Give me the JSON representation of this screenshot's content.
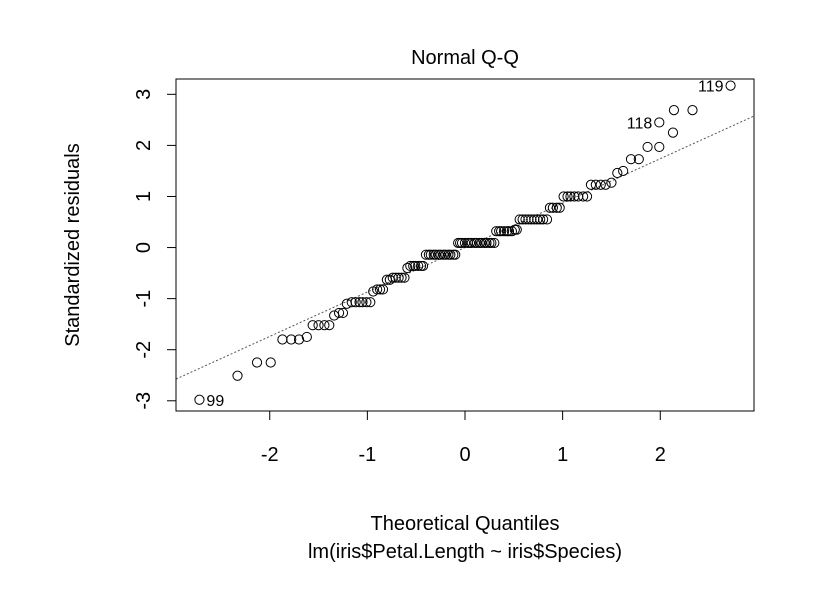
{
  "chart_data": {
    "type": "scatter",
    "title": "Normal Q-Q",
    "xlabel": "Theoretical Quantiles",
    "subtitle": "lm(iris$Petal.Length ~ iris$Species)",
    "ylabel": "Standardized residuals",
    "xlim": [
      -2.96,
      2.96
    ],
    "ylim": [
      -3.2,
      3.3
    ],
    "xticks": [
      -2,
      -1,
      0,
      1,
      2
    ],
    "yticks": [
      -3,
      -2,
      -1,
      0,
      1,
      2,
      3
    ],
    "reference_line": {
      "style": "dotted",
      "intercept": 0.0,
      "slope": 0.87
    },
    "labeled_points": [
      {
        "label": "119",
        "x": 2.72,
        "y": 3.17
      },
      {
        "label": "118",
        "x": 1.99,
        "y": 2.45
      },
      {
        "label": "99",
        "x": -2.72,
        "y": -2.98
      }
    ],
    "points": [
      [
        -2.72,
        -2.98
      ],
      [
        -2.33,
        -2.51
      ],
      [
        -2.13,
        -2.25
      ],
      [
        -1.99,
        -2.25
      ],
      [
        -1.87,
        -1.8
      ],
      [
        -1.78,
        -1.8
      ],
      [
        -1.7,
        -1.8
      ],
      [
        -1.62,
        -1.75
      ],
      [
        -1.56,
        -1.52
      ],
      [
        -1.5,
        -1.52
      ],
      [
        -1.44,
        -1.52
      ],
      [
        -1.39,
        -1.52
      ],
      [
        -1.34,
        -1.33
      ],
      [
        -1.29,
        -1.28
      ],
      [
        -1.25,
        -1.28
      ],
      [
        -1.21,
        -1.1
      ],
      [
        -1.16,
        -1.07
      ],
      [
        -1.12,
        -1.07
      ],
      [
        -1.08,
        -1.07
      ],
      [
        -1.05,
        -1.07
      ],
      [
        -1.01,
        -1.07
      ],
      [
        -0.97,
        -1.07
      ],
      [
        -0.94,
        -0.86
      ],
      [
        -0.9,
        -0.82
      ],
      [
        -0.87,
        -0.82
      ],
      [
        -0.84,
        -0.82
      ],
      [
        -0.8,
        -0.63
      ],
      [
        -0.77,
        -0.63
      ],
      [
        -0.74,
        -0.59
      ],
      [
        -0.71,
        -0.59
      ],
      [
        -0.68,
        -0.59
      ],
      [
        -0.65,
        -0.59
      ],
      [
        -0.62,
        -0.59
      ],
      [
        -0.59,
        -0.4
      ],
      [
        -0.56,
        -0.36
      ],
      [
        -0.53,
        -0.36
      ],
      [
        -0.51,
        -0.36
      ],
      [
        -0.48,
        -0.36
      ],
      [
        -0.45,
        -0.36
      ],
      [
        -0.43,
        -0.36
      ],
      [
        -0.4,
        -0.14
      ],
      [
        -0.37,
        -0.14
      ],
      [
        -0.35,
        -0.14
      ],
      [
        -0.32,
        -0.14
      ],
      [
        -0.3,
        -0.14
      ],
      [
        -0.27,
        -0.14
      ],
      [
        -0.25,
        -0.14
      ],
      [
        -0.22,
        -0.14
      ],
      [
        -0.2,
        -0.14
      ],
      [
        -0.17,
        -0.14
      ],
      [
        -0.15,
        -0.14
      ],
      [
        -0.12,
        -0.14
      ],
      [
        -0.1,
        -0.14
      ],
      [
        -0.07,
        0.09
      ],
      [
        -0.05,
        0.09
      ],
      [
        -0.03,
        0.09
      ],
      [
        0.0,
        0.09
      ],
      [
        0.03,
        0.09
      ],
      [
        0.05,
        0.09
      ],
      [
        0.07,
        0.09
      ],
      [
        0.1,
        0.09
      ],
      [
        0.12,
        0.09
      ],
      [
        0.15,
        0.09
      ],
      [
        0.17,
        0.09
      ],
      [
        0.2,
        0.09
      ],
      [
        0.22,
        0.09
      ],
      [
        0.25,
        0.09
      ],
      [
        0.27,
        0.09
      ],
      [
        0.3,
        0.09
      ],
      [
        0.32,
        0.32
      ],
      [
        0.35,
        0.32
      ],
      [
        0.37,
        0.32
      ],
      [
        0.4,
        0.32
      ],
      [
        0.43,
        0.32
      ],
      [
        0.45,
        0.32
      ],
      [
        0.48,
        0.32
      ],
      [
        0.51,
        0.35
      ],
      [
        0.53,
        0.35
      ],
      [
        0.56,
        0.55
      ],
      [
        0.59,
        0.55
      ],
      [
        0.62,
        0.55
      ],
      [
        0.65,
        0.55
      ],
      [
        0.68,
        0.55
      ],
      [
        0.71,
        0.55
      ],
      [
        0.74,
        0.55
      ],
      [
        0.77,
        0.55
      ],
      [
        0.8,
        0.55
      ],
      [
        0.84,
        0.55
      ],
      [
        0.87,
        0.78
      ],
      [
        0.9,
        0.78
      ],
      [
        0.94,
        0.78
      ],
      [
        0.97,
        0.78
      ],
      [
        1.01,
        1.0
      ],
      [
        1.05,
        1.0
      ],
      [
        1.08,
        1.0
      ],
      [
        1.12,
        1.0
      ],
      [
        1.16,
        1.0
      ],
      [
        1.21,
        1.0
      ],
      [
        1.25,
        1.0
      ],
      [
        1.29,
        1.23
      ],
      [
        1.34,
        1.23
      ],
      [
        1.39,
        1.23
      ],
      [
        1.44,
        1.23
      ],
      [
        1.5,
        1.27
      ],
      [
        1.56,
        1.46
      ],
      [
        1.62,
        1.5
      ],
      [
        1.7,
        1.73
      ],
      [
        1.78,
        1.73
      ],
      [
        1.87,
        1.97
      ],
      [
        1.99,
        1.97
      ],
      [
        2.13,
        2.25
      ],
      [
        2.33,
        2.69
      ],
      [
        1.99,
        2.45
      ],
      [
        2.14,
        2.69
      ],
      [
        2.72,
        3.17
      ]
    ]
  }
}
